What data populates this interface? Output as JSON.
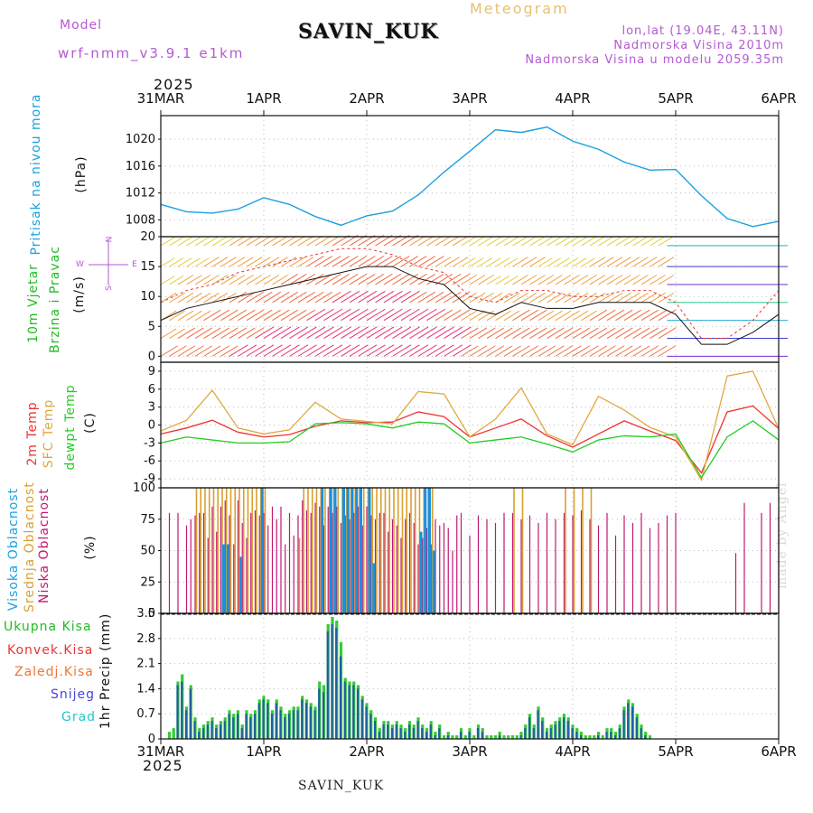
{
  "header": {
    "model_label": "Model",
    "model_name": "wrf-nmm_v3.9.1 e1km",
    "station": "SAVIN_KUK",
    "title": "Meteogram",
    "lonlat": "lon,lat (19.04E, 43.11N)",
    "altitude": "Nadmorska Visina 2010m",
    "model_altitude": "Nadmorska Visina u modelu 2059.35m",
    "year_top": "2025",
    "year_bottom": "2025"
  },
  "footer": {
    "station": "SAVIN_KUK",
    "credit": "made by Angel"
  },
  "axis": {
    "date_labels": [
      "31MAR",
      "1APR",
      "2APR",
      "3APR",
      "4APR",
      "5APR",
      "6APR"
    ]
  },
  "legend_labels": {
    "pressure": {
      "title": "Pritisak na nivou mora",
      "unit": "(hPa)"
    },
    "wind": {
      "line1": "10m Vjetar",
      "line2": "Brzina i Pravac",
      "unit": "(m/s)",
      "compass_n": "N",
      "compass_s": "S",
      "compass_w": "W",
      "compass_e": "E"
    },
    "temp": {
      "t2m": "2m Temp",
      "sfc": "SFC Temp",
      "dew": "dewpt Temp",
      "unit": "(C)"
    },
    "cloud": {
      "high": "Visoka Oblacnost",
      "mid": "Srednja Oblacnost",
      "low": "Niska Oblacnost",
      "unit": "(%)"
    },
    "precip": {
      "total": "Ukupna Kisa",
      "conv": "Konvek.Kisa",
      "frz": "Zaledj.Kisa",
      "snow": "Snijeg",
      "hail": "Grad",
      "unit": "1hr Precip (mm)"
    }
  },
  "colors": {
    "pressure": "#1aa0e0",
    "t2m": "#ee3333",
    "sfc": "#e0a840",
    "dew": "#22cc22",
    "cloud_high": "#1a90e0",
    "cloud_mid": "#d8a030",
    "cloud_low": "#c01870",
    "precip_total": "#33cc33",
    "precip_conv": "#1f5f9f",
    "snow": "#3333cc",
    "hail": "#22c8c8",
    "legend_total": "#22bb22",
    "legend_conv": "#ee3333",
    "legend_frz": "#ee7733",
    "legend_snow": "#4444dd",
    "legend_hail": "#22c8c8",
    "side_purple": "#b45ad2"
  },
  "chart_data": [
    {
      "type": "line",
      "title": "Pritisak na nivou mora",
      "ylabel": "(hPa)",
      "ylim": [
        1005.5,
        1023.5
      ],
      "yticks": [
        1008,
        1012,
        1016,
        1020
      ],
      "x_hours": [
        0,
        6,
        12,
        18,
        24,
        30,
        36,
        42,
        48,
        54,
        60,
        66,
        72,
        78,
        84,
        90,
        96,
        102,
        108,
        114,
        120,
        126,
        132,
        138,
        144
      ],
      "series": [
        {
          "values": [
            1010.3,
            1009.2,
            1009.0,
            1009.6,
            1011.3,
            1010.3,
            1008.5,
            1007.2,
            1008.6,
            1009.3,
            1011.7,
            1015.1,
            1018.2,
            1021.4,
            1021.0,
            1021.8,
            1019.7,
            1018.5,
            1016.6,
            1015.4,
            1015.5,
            1011.6,
            1008.2,
            1007.0,
            1007.8
          ]
        }
      ],
      "grid": true
    },
    {
      "type": "line",
      "title": "10m Vjetar Brzina i Pravac",
      "ylabel": "(m/s)",
      "ylim": [
        -1,
        20
      ],
      "yticks": [
        0,
        5,
        10,
        15,
        20
      ],
      "x_hours": [
        0,
        6,
        12,
        18,
        24,
        30,
        36,
        42,
        48,
        54,
        60,
        66,
        72,
        78,
        84,
        90,
        96,
        102,
        108,
        114,
        120,
        126,
        132,
        138,
        144
      ],
      "series": [
        {
          "name": "speed",
          "values": [
            6,
            8,
            9,
            10,
            11,
            12,
            13,
            14,
            15,
            15,
            13,
            12,
            8,
            7,
            9,
            8,
            8,
            9,
            9,
            9,
            7,
            2,
            2,
            4,
            7
          ]
        },
        {
          "name": "gust",
          "values": [
            9,
            11,
            12,
            14,
            15,
            16,
            17,
            18,
            18,
            17,
            15,
            14,
            10,
            9,
            11,
            11,
            10,
            10,
            11,
            11,
            9,
            3,
            3,
            6,
            11
          ]
        }
      ],
      "grid": true
    },
    {
      "type": "line",
      "title": "Temperature",
      "ylabel": "(C)",
      "ylim": [
        -10.5,
        10.5
      ],
      "yticks": [
        -9,
        -6,
        -3,
        0,
        3,
        6,
        9
      ],
      "x_hours": [
        0,
        6,
        12,
        18,
        24,
        30,
        36,
        42,
        48,
        54,
        60,
        66,
        72,
        78,
        84,
        90,
        96,
        102,
        108,
        114,
        120,
        126,
        132,
        138,
        144
      ],
      "series": [
        {
          "name": "2m Temp",
          "values": [
            -1.5,
            -0.5,
            0.8,
            -1.2,
            -2.0,
            -1.6,
            -0.2,
            0.7,
            0.4,
            0.5,
            2.2,
            1.4,
            -2.0,
            -0.5,
            1.0,
            -1.8,
            -3.7,
            -1.5,
            0.7,
            -1.0,
            -2.6,
            -8.0,
            2.2,
            3.2,
            -0.6
          ]
        },
        {
          "name": "SFC Temp",
          "values": [
            -1.0,
            0.8,
            5.8,
            -0.5,
            -1.5,
            -0.8,
            3.8,
            1.0,
            0.6,
            0.2,
            5.6,
            5.2,
            -2.0,
            1.0,
            6.2,
            -1.5,
            -3.3,
            4.8,
            2.5,
            -0.4,
            -2.0,
            -9.2,
            8.2,
            9.0,
            -0.6
          ]
        },
        {
          "name": "dewpt Temp",
          "values": [
            -3.0,
            -2.0,
            -2.5,
            -3.0,
            -3.0,
            -2.8,
            0.2,
            0.4,
            0.2,
            -0.5,
            0.5,
            0.2,
            -3.0,
            -2.5,
            -2.0,
            -3.2,
            -4.5,
            -2.5,
            -1.8,
            -2.0,
            -1.5,
            -8.8,
            -2.0,
            0.7,
            -2.5
          ]
        }
      ],
      "grid": true
    },
    {
      "type": "bar",
      "title": "Oblacnost",
      "ylabel": "(%)",
      "ylim": [
        0,
        100
      ],
      "yticks": [
        0,
        25,
        50,
        75,
        100
      ],
      "x_hours": [
        2,
        4,
        6,
        7,
        8,
        9,
        10,
        11,
        12,
        13,
        14,
        15,
        16,
        17,
        18,
        19,
        20,
        21,
        22,
        23,
        24,
        25,
        26,
        27,
        28,
        29,
        30,
        31,
        32,
        33,
        34,
        35,
        36,
        37,
        38,
        39,
        40,
        41,
        42,
        43,
        44,
        45,
        46,
        47,
        48,
        49,
        50,
        51,
        52,
        53,
        54,
        55,
        56,
        57,
        58,
        59,
        60,
        61,
        62,
        63,
        64,
        65,
        66,
        67,
        68,
        69,
        70,
        72,
        74,
        76,
        78,
        80,
        82,
        84,
        86,
        88,
        90,
        92,
        94,
        96,
        98,
        100,
        102,
        104,
        106,
        108,
        110,
        112,
        114,
        116,
        118,
        120,
        122,
        124,
        126,
        128,
        130,
        132,
        134,
        136,
        138,
        140,
        142,
        144
      ],
      "series": [
        {
          "name": "Niska Oblacnost",
          "values": [
            80,
            80,
            70,
            75,
            78,
            80,
            80,
            60,
            85,
            65,
            85,
            90,
            78,
            55,
            90,
            72,
            60,
            80,
            82,
            78,
            80,
            70,
            85,
            75,
            85,
            55,
            80,
            62,
            78,
            90,
            82,
            80,
            88,
            85,
            70,
            85,
            80,
            85,
            72,
            78,
            75,
            80,
            85,
            70,
            85,
            78,
            75,
            80,
            80,
            65,
            75,
            70,
            60,
            75,
            80,
            72,
            55,
            60,
            68,
            55,
            75,
            70,
            72,
            68,
            50,
            78,
            80,
            62,
            78,
            75,
            72,
            80,
            80,
            75,
            78,
            72,
            80,
            75,
            80,
            78,
            82,
            75,
            70,
            80,
            62,
            78,
            72,
            80,
            68,
            72,
            78,
            80,
            0,
            0,
            0,
            0,
            0,
            0,
            48,
            88,
            0,
            80,
            88,
            80
          ]
        },
        {
          "name": "Srednja Oblacnost",
          "values": [
            0,
            0,
            0,
            0,
            100,
            100,
            100,
            100,
            100,
            100,
            100,
            100,
            100,
            100,
            100,
            100,
            100,
            100,
            100,
            100,
            100,
            0,
            0,
            0,
            0,
            0,
            0,
            0,
            60,
            100,
            100,
            100,
            100,
            100,
            100,
            100,
            100,
            100,
            100,
            100,
            100,
            100,
            100,
            100,
            100,
            100,
            100,
            100,
            100,
            100,
            100,
            100,
            100,
            100,
            100,
            100,
            100,
            100,
            100,
            100,
            0,
            0,
            0,
            0,
            0,
            0,
            0,
            0,
            0,
            0,
            0,
            0,
            100,
            100,
            0,
            0,
            0,
            0,
            100,
            100,
            100,
            100,
            0,
            0,
            0,
            0,
            0,
            0,
            0,
            0,
            0,
            0,
            0,
            0,
            0,
            0,
            0,
            0,
            0,
            0,
            0,
            0,
            0,
            0
          ]
        },
        {
          "name": "Visoka Oblacnost",
          "values": [
            0,
            0,
            0,
            0,
            0,
            0,
            0,
            0,
            0,
            0,
            55,
            55,
            0,
            0,
            45,
            0,
            0,
            0,
            0,
            100,
            0,
            0,
            0,
            0,
            0,
            0,
            0,
            0,
            0,
            0,
            0,
            0,
            0,
            100,
            0,
            100,
            100,
            0,
            100,
            100,
            100,
            100,
            100,
            0,
            100,
            40,
            0,
            0,
            0,
            0,
            0,
            0,
            0,
            0,
            0,
            0,
            65,
            100,
            100,
            50,
            0,
            0,
            0,
            0,
            0,
            0,
            0,
            0,
            0,
            0,
            0,
            0,
            0,
            0,
            0,
            0,
            0,
            0,
            0,
            0,
            0,
            0,
            0,
            0,
            0,
            0,
            0,
            0,
            0,
            0,
            0,
            0,
            0,
            0,
            0,
            0,
            0,
            0,
            0,
            0,
            0,
            0,
            0,
            0
          ]
        }
      ],
      "grid": true
    },
    {
      "type": "bar",
      "title": "1hr Precip",
      "ylabel": "1hr Precip (mm)",
      "ylim": [
        0,
        3.5
      ],
      "yticks": [
        0,
        0.7,
        1.4,
        2.1,
        2.8,
        3.5
      ],
      "x_hours": [
        2,
        3,
        4,
        5,
        6,
        7,
        8,
        9,
        10,
        11,
        12,
        13,
        14,
        15,
        16,
        17,
        18,
        19,
        20,
        21,
        22,
        23,
        24,
        25,
        26,
        27,
        28,
        29,
        30,
        31,
        32,
        33,
        34,
        35,
        36,
        37,
        38,
        39,
        40,
        41,
        42,
        43,
        44,
        45,
        46,
        47,
        48,
        49,
        50,
        51,
        52,
        53,
        54,
        55,
        56,
        57,
        58,
        59,
        60,
        61,
        62,
        63,
        64,
        65,
        66,
        67,
        68,
        69,
        70,
        71,
        72,
        73,
        74,
        75,
        76,
        77,
        78,
        79,
        80,
        81,
        82,
        83,
        84,
        85,
        86,
        87,
        88,
        89,
        90,
        91,
        92,
        93,
        94,
        95,
        96,
        97,
        98,
        99,
        100,
        101,
        102,
        103,
        104,
        105,
        106,
        107,
        108,
        109,
        110,
        111,
        112,
        113,
        114,
        115,
        116,
        117,
        118,
        119,
        120
      ],
      "series": [
        {
          "name": "Ukupna Kisa",
          "values": [
            0.2,
            0.3,
            1.6,
            1.8,
            0.9,
            1.5,
            0.6,
            0.3,
            0.4,
            0.5,
            0.6,
            0.4,
            0.5,
            0.6,
            0.8,
            0.7,
            0.8,
            0.4,
            0.8,
            0.7,
            0.8,
            1.1,
            1.2,
            1.1,
            0.8,
            1.1,
            0.9,
            0.7,
            0.8,
            0.9,
            0.9,
            1.2,
            1.1,
            1.0,
            0.9,
            1.6,
            1.5,
            3.2,
            3.4,
            3.3,
            2.7,
            1.7,
            1.6,
            1.6,
            1.5,
            1.2,
            1.0,
            0.8,
            0.6,
            0.3,
            0.5,
            0.5,
            0.4,
            0.5,
            0.4,
            0.3,
            0.5,
            0.4,
            0.6,
            0.4,
            0.3,
            0.5,
            0.2,
            0.4,
            0.1,
            0.2,
            0.1,
            0.1,
            0.3,
            0.1,
            0.3,
            0.1,
            0.4,
            0.3,
            0.1,
            0.1,
            0.1,
            0.2,
            0.1,
            0.1,
            0.1,
            0.1,
            0.2,
            0.4,
            0.7,
            0.4,
            0.9,
            0.6,
            0.3,
            0.4,
            0.5,
            0.6,
            0.7,
            0.6,
            0.4,
            0.3,
            0.2,
            0.1,
            0.1,
            0.1,
            0.2,
            0.1,
            0.3,
            0.3,
            0.2,
            0.4,
            0.9,
            1.1,
            1.0,
            0.7,
            0.4,
            0.2,
            0.1,
            0,
            0,
            0,
            0,
            0,
            0
          ]
        },
        {
          "name": "Konvek.Kisa",
          "values": [
            0,
            0,
            1.5,
            1.6,
            0.8,
            1.4,
            0.5,
            0.2,
            0.3,
            0.4,
            0.5,
            0.3,
            0.4,
            0.5,
            0.7,
            0.6,
            0.7,
            0.3,
            0.7,
            0.6,
            0.7,
            1.0,
            1.1,
            1.0,
            0.7,
            1.0,
            0.8,
            0.6,
            0.7,
            0.8,
            0.8,
            1.1,
            1.0,
            0.9,
            0.8,
            1.4,
            1.3,
            3.0,
            3.2,
            3.1,
            2.3,
            1.6,
            1.5,
            1.5,
            1.4,
            1.1,
            0.9,
            0.7,
            0.5,
            0.2,
            0.4,
            0.4,
            0.3,
            0.4,
            0.3,
            0.2,
            0.4,
            0.3,
            0.5,
            0.3,
            0.2,
            0.4,
            0.1,
            0.3,
            0,
            0.1,
            0,
            0,
            0.2,
            0,
            0.2,
            0,
            0.3,
            0.2,
            0,
            0,
            0,
            0.1,
            0,
            0,
            0,
            0,
            0.1,
            0.3,
            0.6,
            0.3,
            0.8,
            0.5,
            0.2,
            0.3,
            0.4,
            0.5,
            0.6,
            0.5,
            0.3,
            0.2,
            0.1,
            0,
            0,
            0,
            0.1,
            0,
            0.2,
            0.2,
            0.1,
            0.3,
            0.8,
            1.0,
            0.9,
            0.6,
            0.3,
            0.1,
            0,
            0,
            0,
            0,
            0,
            0,
            0
          ]
        }
      ],
      "grid": true
    }
  ]
}
